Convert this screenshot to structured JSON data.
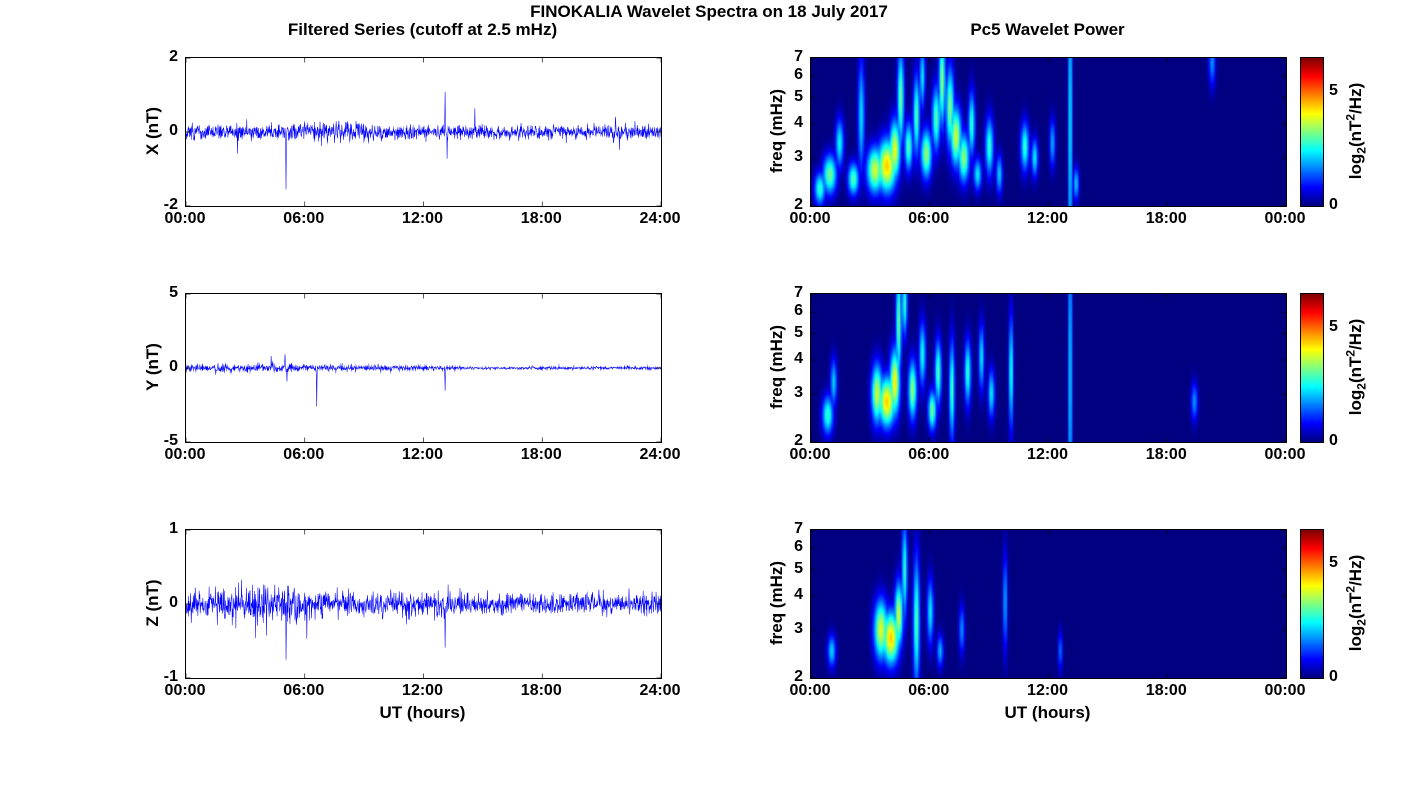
{
  "figure": {
    "title": "FINOKALIA Wavelet Spectra on 18 July 2017",
    "left_title": "Filtered Series (cutoff at 2.5 mHz)",
    "right_title": "Pc5 Wavelet Power",
    "xlabel": "UT (hours)",
    "background": "#ffffff",
    "axis_color": "#000000",
    "line_color": "#0000ff",
    "x_tick_hours": [
      0,
      6,
      12,
      18,
      24
    ],
    "colorbar_label_parts": {
      "prefix": "log",
      "sub": "2",
      "open": "(nT",
      "sup": "2",
      "close": "/Hz)"
    }
  },
  "chart_data": [
    {
      "type": "line",
      "title": "Filtered Series (cutoff at 2.5 mHz)",
      "ylabel": "X (nT)",
      "xlabel": "UT (hours)",
      "x_range_hours": [
        0,
        24
      ],
      "x_ticks": [
        "00:00",
        "06:00",
        "12:00",
        "18:00",
        "24:00"
      ],
      "ylim": [
        -2,
        2
      ],
      "yticks": [
        2,
        0,
        -2
      ],
      "line_color": "#0000ff",
      "noise_seed": 101,
      "noise_envelope_t_std": [
        [
          0,
          0.1
        ],
        [
          5,
          0.11
        ],
        [
          6,
          0.13
        ],
        [
          9,
          0.13
        ],
        [
          10,
          0.1
        ],
        [
          14,
          0.1
        ],
        [
          15,
          0.09
        ],
        [
          21,
          0.1
        ],
        [
          24,
          0.1
        ]
      ],
      "spike_events_t_amp": [
        [
          2.6,
          -0.45
        ],
        [
          5.05,
          -1.35
        ],
        [
          13.1,
          1.15
        ],
        [
          13.2,
          -0.65
        ],
        [
          14.6,
          0.45
        ],
        [
          21.7,
          0.5
        ],
        [
          21.9,
          -0.4
        ]
      ]
    },
    {
      "type": "line",
      "title": "Filtered Series (cutoff at 2.5 mHz)",
      "ylabel": "Y (nT)",
      "xlabel": "UT (hours)",
      "x_range_hours": [
        0,
        24
      ],
      "x_ticks": [
        "00:00",
        "06:00",
        "12:00",
        "18:00",
        "24:00"
      ],
      "ylim": [
        -5,
        5
      ],
      "yticks": [
        5,
        0,
        -5
      ],
      "line_color": "#0000ff",
      "noise_seed": 202,
      "noise_envelope_t_std": [
        [
          0,
          0.12
        ],
        [
          2,
          0.13
        ],
        [
          5,
          0.13
        ],
        [
          8,
          0.1
        ],
        [
          13,
          0.08
        ],
        [
          14,
          0.05
        ],
        [
          24,
          0.05
        ]
      ],
      "spike_events_t_amp": [
        [
          1.5,
          -0.55
        ],
        [
          4.3,
          0.7
        ],
        [
          5.0,
          0.9
        ],
        [
          5.1,
          -0.9
        ],
        [
          6.6,
          -2.6
        ],
        [
          13.1,
          -1.6
        ]
      ]
    },
    {
      "type": "line",
      "title": "Filtered Series (cutoff at 2.5 mHz)",
      "ylabel": "Z (nT)",
      "xlabel": "UT (hours)",
      "x_range_hours": [
        0,
        24
      ],
      "x_ticks": [
        "00:00",
        "06:00",
        "12:00",
        "18:00",
        "24:00"
      ],
      "ylim": [
        -1,
        1
      ],
      "yticks": [
        1,
        0,
        -1
      ],
      "line_color": "#0000ff",
      "noise_seed": 303,
      "noise_envelope_t_std": [
        [
          0,
          0.09
        ],
        [
          2,
          0.11
        ],
        [
          2.5,
          0.13
        ],
        [
          4,
          0.13
        ],
        [
          5,
          0.12
        ],
        [
          7,
          0.11
        ],
        [
          8,
          0.09
        ],
        [
          9,
          0.08
        ],
        [
          13,
          0.08
        ],
        [
          14,
          0.07
        ],
        [
          24,
          0.07
        ]
      ],
      "spike_events_t_amp": [
        [
          2.8,
          0.5
        ],
        [
          5.05,
          -0.72
        ],
        [
          6.1,
          -0.5
        ],
        [
          13.1,
          -0.72
        ]
      ]
    },
    {
      "type": "heatmap",
      "title": "Pc5 Wavelet Power",
      "ylabel": "freq (mHz)",
      "xlabel": "UT (hours)",
      "x_range_hours": [
        0,
        24
      ],
      "x_ticks": [
        "00:00",
        "06:00",
        "12:00",
        "18:00",
        "00:00"
      ],
      "f_range_mhz": [
        2,
        7
      ],
      "f_scale": "log",
      "f_ticks": [
        7,
        6,
        5,
        4,
        3,
        2
      ],
      "colormap": "jet",
      "colorbar_range": [
        0,
        6.5
      ],
      "colorbar_ticks": [
        0,
        5
      ],
      "colorbar_label": "log₂(nT²/Hz)",
      "blobs_t_f_amp_st_sf": [
        [
          0.4,
          2.3,
          2.8,
          0.2,
          0.1
        ],
        [
          0.9,
          2.6,
          3.2,
          0.25,
          0.12
        ],
        [
          1.4,
          3.4,
          2.5,
          0.15,
          0.15
        ],
        [
          2.1,
          2.5,
          3.0,
          0.2,
          0.1
        ],
        [
          2.5,
          4.3,
          2.3,
          0.12,
          0.35
        ],
        [
          3.2,
          2.7,
          3.8,
          0.3,
          0.14
        ],
        [
          3.8,
          2.8,
          4.4,
          0.35,
          0.16
        ],
        [
          4.2,
          3.2,
          4.0,
          0.2,
          0.18
        ],
        [
          4.5,
          5.0,
          3.2,
          0.12,
          0.3
        ],
        [
          4.9,
          3.3,
          3.0,
          0.15,
          0.15
        ],
        [
          5.3,
          4.3,
          3.0,
          0.12,
          0.25
        ],
        [
          5.6,
          6.0,
          2.4,
          0.1,
          0.2
        ],
        [
          5.8,
          3.1,
          3.4,
          0.2,
          0.15
        ],
        [
          6.3,
          4.2,
          3.0,
          0.15,
          0.2
        ],
        [
          6.6,
          5.8,
          3.4,
          0.12,
          0.28
        ],
        [
          7.0,
          4.6,
          3.3,
          0.15,
          0.25
        ],
        [
          7.3,
          3.6,
          3.8,
          0.2,
          0.18
        ],
        [
          7.7,
          3.0,
          3.4,
          0.2,
          0.15
        ],
        [
          8.1,
          4.0,
          2.8,
          0.12,
          0.2
        ],
        [
          8.4,
          2.6,
          2.4,
          0.15,
          0.1
        ],
        [
          9.0,
          3.3,
          2.8,
          0.15,
          0.18
        ],
        [
          9.5,
          2.6,
          2.2,
          0.12,
          0.12
        ],
        [
          10.8,
          3.3,
          2.8,
          0.15,
          0.15
        ],
        [
          11.3,
          3.0,
          2.4,
          0.12,
          0.12
        ],
        [
          12.2,
          3.4,
          2.0,
          0.1,
          0.15
        ],
        [
          13.1,
          4.0,
          2.6,
          0.07,
          1.2
        ],
        [
          13.4,
          2.4,
          2.2,
          0.1,
          0.1
        ],
        [
          20.3,
          6.8,
          1.8,
          0.12,
          0.15
        ]
      ]
    },
    {
      "type": "heatmap",
      "title": "Pc5 Wavelet Power",
      "ylabel": "freq (mHz)",
      "xlabel": "UT (hours)",
      "x_range_hours": [
        0,
        24
      ],
      "x_ticks": [
        "00:00",
        "06:00",
        "12:00",
        "18:00",
        "00:00"
      ],
      "f_range_mhz": [
        2,
        7
      ],
      "f_scale": "log",
      "f_ticks": [
        7,
        6,
        5,
        4,
        3,
        2
      ],
      "colormap": "jet",
      "colorbar_range": [
        0,
        6.5
      ],
      "colorbar_ticks": [
        0,
        5
      ],
      "colorbar_label": "log₂(nT²/Hz)",
      "blobs_t_f_amp_st_sf": [
        [
          0.8,
          2.5,
          2.8,
          0.2,
          0.12
        ],
        [
          1.1,
          3.3,
          2.2,
          0.12,
          0.15
        ],
        [
          3.3,
          3.0,
          3.8,
          0.2,
          0.18
        ],
        [
          3.8,
          2.8,
          4.4,
          0.3,
          0.15
        ],
        [
          4.2,
          3.3,
          4.2,
          0.18,
          0.2
        ],
        [
          4.4,
          5.5,
          3.2,
          0.1,
          0.35
        ],
        [
          4.7,
          6.5,
          2.8,
          0.1,
          0.2
        ],
        [
          5.1,
          3.1,
          3.4,
          0.15,
          0.18
        ],
        [
          5.6,
          4.2,
          2.6,
          0.12,
          0.2
        ],
        [
          6.1,
          2.6,
          3.2,
          0.15,
          0.12
        ],
        [
          6.4,
          3.6,
          3.0,
          0.12,
          0.2
        ],
        [
          7.1,
          3.1,
          3.0,
          0.1,
          0.3
        ],
        [
          7.9,
          3.6,
          2.8,
          0.12,
          0.2
        ],
        [
          8.6,
          4.1,
          2.4,
          0.1,
          0.2
        ],
        [
          9.1,
          3.0,
          2.4,
          0.12,
          0.15
        ],
        [
          10.1,
          3.6,
          2.8,
          0.08,
          0.35
        ],
        [
          13.1,
          3.5,
          2.4,
          0.07,
          1.2
        ],
        [
          19.4,
          2.8,
          1.8,
          0.12,
          0.12
        ]
      ]
    },
    {
      "type": "heatmap",
      "title": "Pc5 Wavelet Power",
      "ylabel": "freq (mHz)",
      "xlabel": "UT (hours)",
      "x_range_hours": [
        0,
        24
      ],
      "x_ticks": [
        "00:00",
        "06:00",
        "12:00",
        "18:00",
        "00:00"
      ],
      "f_range_mhz": [
        2,
        7
      ],
      "f_scale": "log",
      "f_ticks": [
        7,
        6,
        5,
        4,
        3,
        2
      ],
      "colormap": "jet",
      "colorbar_range": [
        0,
        6.5
      ],
      "colorbar_ticks": [
        0,
        5
      ],
      "colorbar_label": "log₂(nT²/Hz)",
      "blobs_t_f_amp_st_sf": [
        [
          1.0,
          2.5,
          2.2,
          0.15,
          0.1
        ],
        [
          3.5,
          3.0,
          3.9,
          0.25,
          0.18
        ],
        [
          4.0,
          2.8,
          4.4,
          0.3,
          0.16
        ],
        [
          4.4,
          3.4,
          3.8,
          0.15,
          0.2
        ],
        [
          4.7,
          5.0,
          2.8,
          0.1,
          0.3
        ],
        [
          5.3,
          3.2,
          3.0,
          0.12,
          0.4
        ],
        [
          6.0,
          3.5,
          2.4,
          0.12,
          0.2
        ],
        [
          6.5,
          2.5,
          2.0,
          0.12,
          0.1
        ],
        [
          7.6,
          3.0,
          1.8,
          0.1,
          0.15
        ],
        [
          9.8,
          3.8,
          2.0,
          0.08,
          0.3
        ],
        [
          12.6,
          2.5,
          1.6,
          0.08,
          0.12
        ]
      ]
    }
  ]
}
